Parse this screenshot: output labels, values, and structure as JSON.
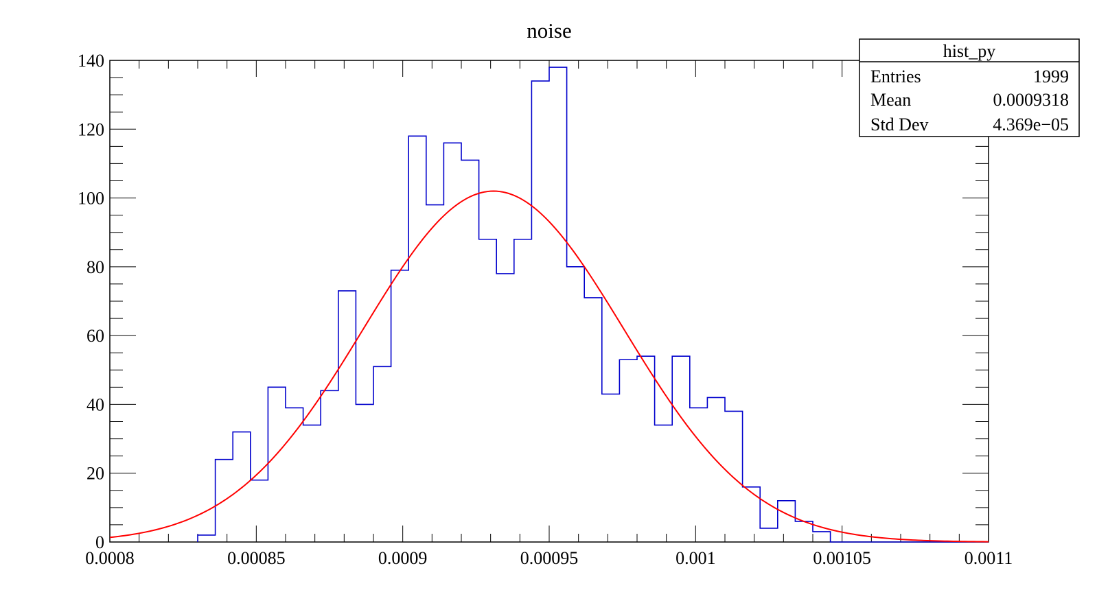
{
  "chart_data": {
    "type": "histogram",
    "title": "noise",
    "xlabel": "",
    "ylabel": "",
    "xlim": [
      0.0008,
      0.0011
    ],
    "ylim": [
      0,
      140
    ],
    "x_ticks": [
      {
        "value": 0.0008,
        "label": "0.0008"
      },
      {
        "value": 0.00085,
        "label": "0.00085"
      },
      {
        "value": 0.0009,
        "label": "0.0009"
      },
      {
        "value": 0.00095,
        "label": "0.00095"
      },
      {
        "value": 0.001,
        "label": "0.001"
      },
      {
        "value": 0.00105,
        "label": "0.00105"
      },
      {
        "value": 0.0011,
        "label": "0.0011"
      }
    ],
    "y_ticks": [
      {
        "value": 0,
        "label": "0"
      },
      {
        "value": 20,
        "label": "20"
      },
      {
        "value": 40,
        "label": "40"
      },
      {
        "value": 60,
        "label": "60"
      },
      {
        "value": 80,
        "label": "80"
      },
      {
        "value": 100,
        "label": "100"
      },
      {
        "value": 120,
        "label": "120"
      },
      {
        "value": 140,
        "label": "140"
      }
    ],
    "histogram": {
      "color": "#0000cc",
      "bin_start": 0.0008,
      "bin_width": 6e-06,
      "counts": [
        0,
        0,
        0,
        0,
        0,
        2,
        24,
        32,
        18,
        45,
        39,
        34,
        44,
        73,
        40,
        51,
        79,
        118,
        98,
        116,
        111,
        88,
        78,
        88,
        134,
        138,
        80,
        71,
        43,
        53,
        54,
        34,
        54,
        39,
        42,
        38,
        16,
        4,
        12,
        6,
        3,
        0,
        0,
        0,
        0,
        0,
        0,
        0,
        0,
        0
      ]
    },
    "fit": {
      "type": "gaussian",
      "color": "#ff0000",
      "amplitude": 102,
      "mean": 0.000931,
      "sigma": 4.45e-05,
      "x_range": [
        0.0008,
        0.0011
      ]
    },
    "stats_box": {
      "title": "hist_py",
      "rows": [
        {
          "label": "Entries",
          "value": "1999"
        },
        {
          "label": "Mean",
          "value": "0.0009318"
        },
        {
          "label": "Std Dev",
          "value": "4.369e−05"
        }
      ]
    }
  }
}
